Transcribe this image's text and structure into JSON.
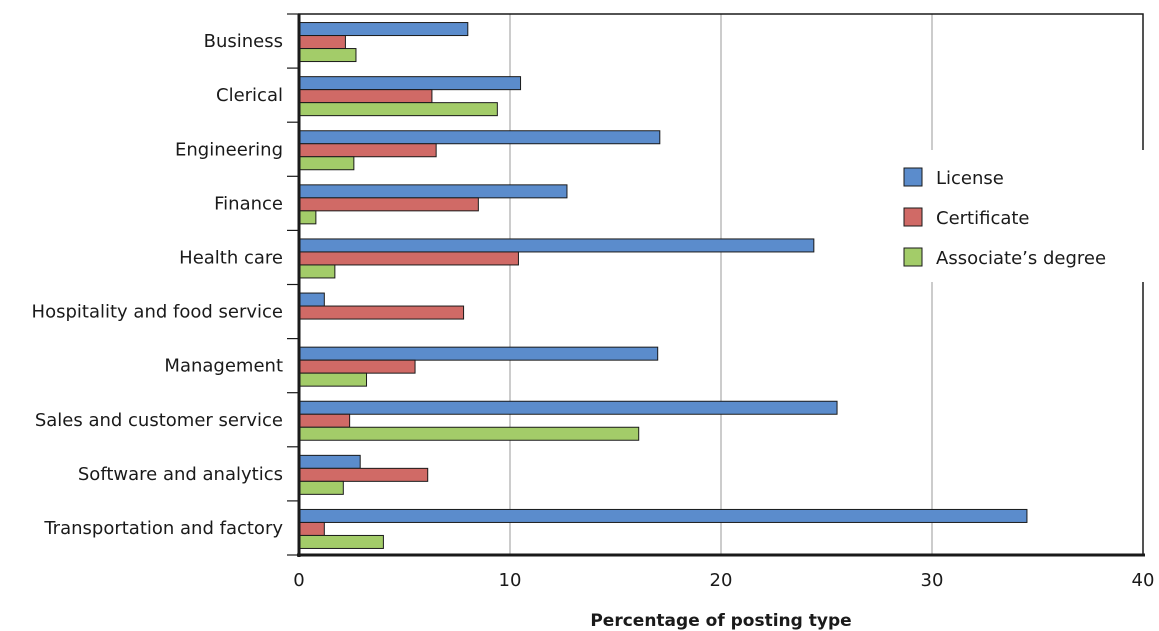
{
  "chart_data": {
    "type": "bar",
    "orientation": "horizontal",
    "categories": [
      "Business",
      "Clerical",
      "Engineering",
      "Finance",
      "Health care",
      "Hospitality and food service",
      "Management",
      "Sales and customer service",
      "Software and analytics",
      "Transportation and factory"
    ],
    "series": [
      {
        "name": "License",
        "color": "#5b8ccc",
        "values": [
          8.0,
          10.5,
          17.1,
          12.7,
          24.4,
          1.2,
          17.0,
          25.5,
          2.9,
          34.5
        ]
      },
      {
        "name": "Certificate",
        "color": "#d06a66",
        "values": [
          2.2,
          6.3,
          6.5,
          8.5,
          10.4,
          7.8,
          5.5,
          2.4,
          6.1,
          1.2
        ]
      },
      {
        "name": "Associate’s degree",
        "color": "#a3cc69",
        "values": [
          2.7,
          9.4,
          2.6,
          0.8,
          1.7,
          0,
          3.2,
          16.1,
          2.1,
          4.0
        ]
      }
    ],
    "xlabel": "Percentage of posting type",
    "ylabel": "",
    "xlim": [
      0,
      40
    ],
    "xticks": [
      0,
      10,
      20,
      30,
      40
    ],
    "grid": true,
    "legend_position": "right"
  }
}
